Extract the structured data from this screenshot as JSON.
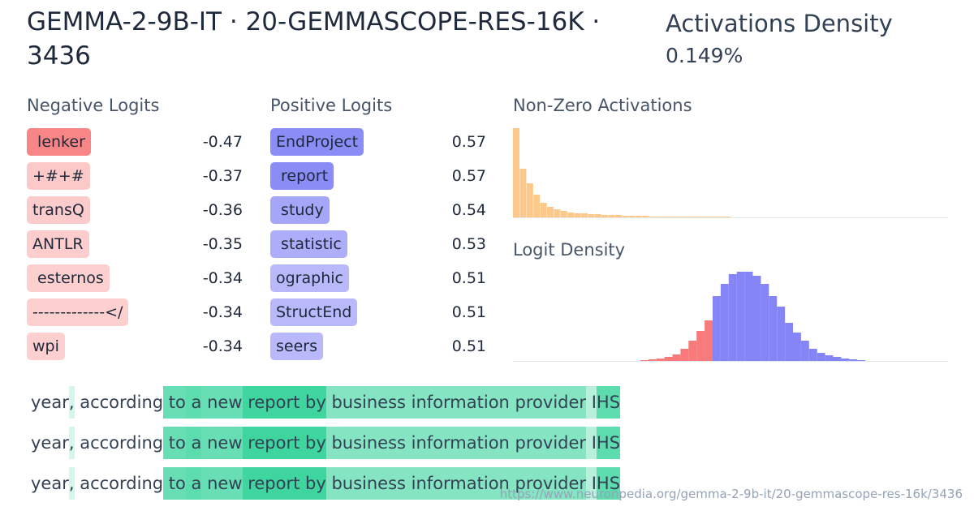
{
  "header": {
    "title": "GEMMA-2-9B-IT · 20-GEMMASCOPE-RES-16K · 3436",
    "density_label": "Activations Density",
    "density_value": "0.149%"
  },
  "negative_logits": {
    "heading": "Negative Logits",
    "color": "#f87171",
    "tokens": [
      " lenker",
      "+#+#",
      "transQ",
      "ANTLR",
      " esternos",
      "-------------</",
      "wpi"
    ],
    "values": [
      -0.47,
      -0.37,
      -0.36,
      -0.35,
      -0.34,
      -0.34,
      -0.34
    ]
  },
  "positive_logits": {
    "heading": "Positive Logits",
    "color": "#7878f5",
    "tokens": [
      "EndProject",
      " report",
      " study",
      " statistic",
      "ographic",
      "StructEnd",
      "seers"
    ],
    "values": [
      0.57,
      0.57,
      0.54,
      0.53,
      0.51,
      0.51,
      0.51
    ]
  },
  "activations_histogram": {
    "title": "Non-Zero Activations",
    "color": "#fdc98a",
    "counts": [
      110,
      60,
      42,
      28,
      18,
      13,
      10,
      8,
      6,
      5,
      5,
      4,
      4,
      3,
      3,
      3,
      2,
      2,
      2,
      2,
      1,
      1,
      1,
      1,
      1,
      1,
      1,
      1,
      1,
      1,
      1,
      1
    ]
  },
  "logit_density": {
    "title": "Logit Density",
    "negative_color": "#f87a7a",
    "positive_color": "#8585f8",
    "negative_counts": [
      1,
      2,
      3,
      5,
      8,
      15,
      25,
      37,
      50
    ],
    "positive_counts": [
      80,
      95,
      107,
      110,
      110,
      105,
      95,
      80,
      67,
      47,
      35,
      25,
      15,
      10,
      7,
      5,
      3,
      2,
      1
    ]
  },
  "examples": [
    {
      "tokens": [
        "year",
        ",",
        " according",
        " to",
        " a",
        " new",
        " report",
        " by",
        " business",
        " information",
        " provider",
        " I",
        "HS"
      ],
      "activations": [
        0,
        0.2,
        0,
        0.75,
        0.8,
        0.75,
        0.95,
        0.95,
        0.6,
        0.6,
        0.6,
        0.35,
        0.8
      ]
    },
    {
      "tokens": [
        "year",
        ",",
        " according",
        " to",
        " a",
        " new",
        " report",
        " by",
        " business",
        " information",
        " provider",
        " I",
        "HS"
      ],
      "activations": [
        0,
        0.2,
        0,
        0.75,
        0.8,
        0.75,
        0.95,
        0.95,
        0.6,
        0.6,
        0.6,
        0.35,
        0.8
      ]
    },
    {
      "tokens": [
        "year",
        ",",
        " according",
        " to",
        " a",
        " new",
        " report",
        " by",
        " business",
        " information",
        " provider",
        " I",
        "HS"
      ],
      "activations": [
        0,
        0.2,
        0,
        0.75,
        0.8,
        0.75,
        0.95,
        0.95,
        0.6,
        0.6,
        0.6,
        0.35,
        0.8
      ]
    }
  ],
  "example_color": "#34d399",
  "footer": {
    "url": "https://www.neuronpedia.org/gemma-2-9b-it/20-gemmascope-res-16k/3436"
  }
}
